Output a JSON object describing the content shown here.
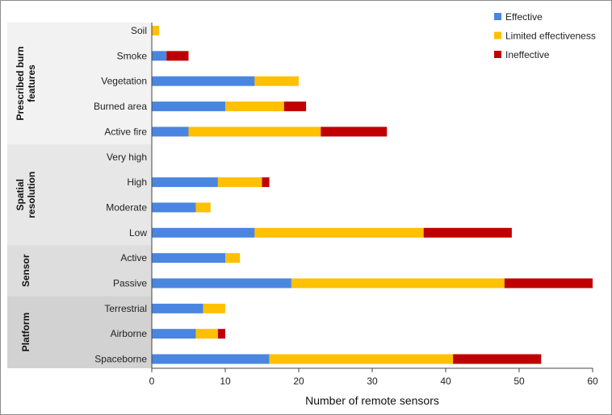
{
  "chart_data": {
    "type": "bar",
    "orientation": "horizontal",
    "stacked": true,
    "xlabel": "Number of remote sensors",
    "xlim": [
      0,
      60
    ],
    "xticks": [
      0,
      10,
      20,
      30,
      40,
      50,
      60
    ],
    "grid": false,
    "legend_position": "top-right",
    "groups": [
      {
        "name": "Prescribed burn features",
        "categories": [
          "Soil",
          "Smoke",
          "Vegetation",
          "Burned area",
          "Active fire"
        ],
        "shade": "#f2f2f2"
      },
      {
        "name": "Spatial resolution",
        "categories": [
          "Very high",
          "High",
          "Moderate",
          "Low"
        ],
        "shade": "#e7e7e7"
      },
      {
        "name": "Sensor",
        "categories": [
          "Active",
          "Passive"
        ],
        "shade": "#dddddd"
      },
      {
        "name": "Platform",
        "categories": [
          "Terrestrial",
          "Airborne",
          "Spaceborne"
        ],
        "shade": "#d2d2d2"
      }
    ],
    "categories": [
      "Soil",
      "Smoke",
      "Vegetation",
      "Burned area",
      "Active fire",
      "Very high",
      "High",
      "Moderate",
      "Low",
      "Active",
      "Passive",
      "Terrestrial",
      "Airborne",
      "Spaceborne"
    ],
    "series": [
      {
        "name": "Effective",
        "color": "#4a86e0",
        "values": [
          0,
          2,
          14,
          10,
          5,
          0,
          9,
          6,
          14,
          10,
          19,
          7,
          6,
          16
        ]
      },
      {
        "name": "Limited effectiveness",
        "color": "#ffc000",
        "values": [
          1,
          0,
          6,
          8,
          18,
          0,
          6,
          2,
          23,
          2,
          29,
          3,
          3,
          25
        ]
      },
      {
        "name": "Ineffective",
        "color": "#c00000",
        "values": [
          0,
          3,
          0,
          3,
          9,
          0,
          1,
          0,
          12,
          0,
          12,
          0,
          1,
          12
        ]
      }
    ]
  }
}
